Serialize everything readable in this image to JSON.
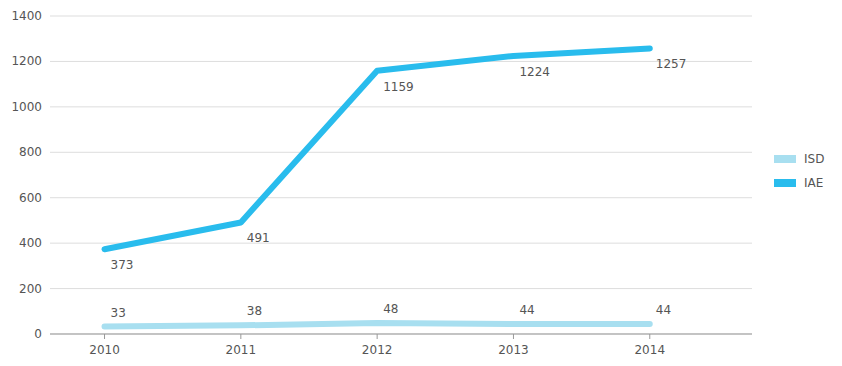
{
  "chart_data": {
    "type": "line",
    "x": [
      2010,
      2011,
      2012,
      2013,
      2014
    ],
    "xlim": [
      2009.6,
      2014.75
    ],
    "xticks": [
      2010,
      2011,
      2012,
      2013,
      2014
    ],
    "ylim": [
      0,
      1400
    ],
    "yticks": [
      0,
      200,
      400,
      600,
      800,
      1000,
      1200,
      1400
    ],
    "series": [
      {
        "name": "ISD",
        "color": "#A8DFF0",
        "values": [
          33,
          38,
          48,
          44,
          44
        ]
      },
      {
        "name": "IAE",
        "color": "#29BCED",
        "values": [
          373,
          491,
          1159,
          1224,
          1257
        ]
      }
    ],
    "grid": true,
    "legend": "right",
    "data_labels": true
  }
}
